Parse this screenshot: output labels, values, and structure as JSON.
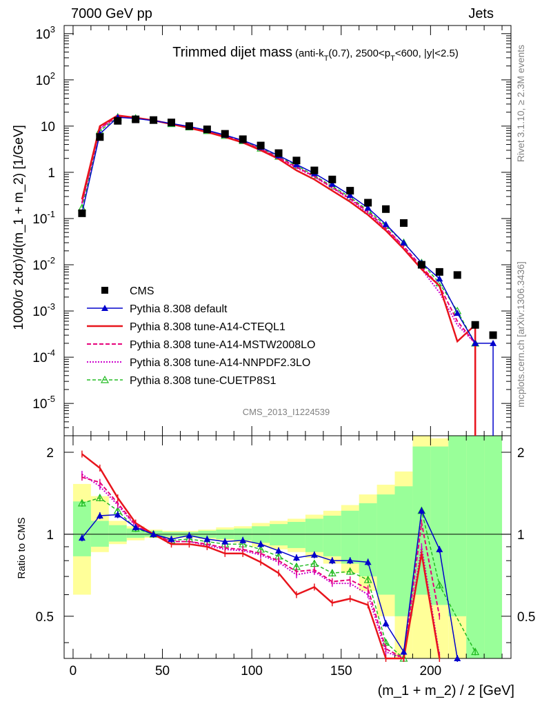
{
  "header": {
    "left": "7000 GeV pp",
    "right": "Jets",
    "side_version": "Rivet 3.1.10, ≥ 2.3M events",
    "side_site": "mcplots.cern.ch [arXiv:1306.3436]",
    "analysis_id": "CMS_2013_I1224539"
  },
  "colors": {
    "cms": "#000000",
    "default": "#0000cc",
    "a14_cteql1": "#e8141c",
    "a14_mstw": "#e6007a",
    "a14_nnpdf": "#cc00cc",
    "cuetp8s1": "#22bb22",
    "band_inner": "#99ff99",
    "band_outer": "#ffff99"
  },
  "chart_data": [
    {
      "type": "line",
      "title": "Trimmed dijet mass",
      "title_sub": "(anti-k",
      "title_sub_T": "T",
      "title_sub_mid": "(0.7), 2500<p",
      "title_sub_end": "<600, |y|<2.5)",
      "ylabel": "1000/σ 2dσ)/d(m_1 + m_2) [1/GeV]",
      "yscale": "log",
      "ylim": [
        2e-06,
        1500
      ],
      "xlim": [
        -5,
        245
      ],
      "y_ticks": [
        {
          "label": "10",
          "exp": "3",
          "v": 1000
        },
        {
          "label": "10",
          "exp": "2",
          "v": 100
        },
        {
          "label": "10",
          "exp": "",
          "v": 10
        },
        {
          "label": "1",
          "exp": "",
          "v": 1
        },
        {
          "label": "10",
          "exp": "-1",
          "v": 0.1
        },
        {
          "label": "10",
          "exp": "-2",
          "v": 0.01
        },
        {
          "label": "10",
          "exp": "-3",
          "v": 0.001
        },
        {
          "label": "10",
          "exp": "-4",
          "v": 0.0001
        },
        {
          "label": "10",
          "exp": "-5",
          "v": 1e-05
        }
      ],
      "legend": "left-bottom",
      "series": [
        {
          "key": "cms",
          "name": "CMS",
          "style": "marker-square",
          "x": [
            5,
            15,
            25,
            35,
            45,
            55,
            65,
            75,
            85,
            95,
            105,
            115,
            125,
            135,
            145,
            155,
            165,
            175,
            185,
            195,
            205,
            215,
            225,
            235
          ],
          "y": [
            0.13,
            5.8,
            13,
            14,
            13.5,
            12,
            10,
            8.5,
            6.8,
            5.2,
            3.8,
            2.6,
            1.8,
            1.1,
            0.7,
            0.4,
            0.22,
            0.16,
            0.08,
            0.01,
            0.007,
            0.006,
            0.0005,
            0.0003
          ]
        },
        {
          "key": "default",
          "name": "Pythia 8.308 default",
          "style": "solid-triangle",
          "x": [
            5,
            15,
            25,
            35,
            45,
            55,
            65,
            75,
            85,
            95,
            105,
            115,
            125,
            135,
            145,
            155,
            165,
            175,
            185,
            195,
            205,
            215,
            225,
            235
          ],
          "y": [
            0.13,
            6.8,
            15.5,
            14.6,
            13.1,
            11.4,
            9.8,
            8.1,
            6.4,
            4.9,
            3.5,
            2.3,
            1.48,
            0.95,
            0.56,
            0.32,
            0.17,
            0.075,
            0.03,
            0.011,
            0.005,
            0.0009,
            0.0002,
            0.0002
          ]
        },
        {
          "key": "a14_cteql1",
          "name": "Pythia 8.308 tune-A14-CTEQL1",
          "style": "solid-thick",
          "x": [
            5,
            15,
            25,
            35,
            45,
            55,
            65,
            75,
            85,
            95,
            105,
            115,
            125,
            135,
            145,
            155,
            165,
            175,
            185,
            195,
            205,
            215,
            225
          ],
          "y": [
            0.26,
            10,
            17,
            15.2,
            13.3,
            11,
            9.1,
            7.4,
            5.8,
            4.4,
            3.0,
            1.95,
            1.1,
            0.7,
            0.4,
            0.23,
            0.12,
            0.055,
            0.022,
            0.008,
            0.0035,
            0.00022,
            0.0005
          ]
        },
        {
          "key": "a14_mstw",
          "name": "Pythia 8.308 tune-A14-MSTW2008LO",
          "style": "dashed",
          "x": [
            5,
            15,
            25,
            35,
            45,
            55,
            65,
            75,
            85,
            95,
            105,
            115,
            125,
            135,
            145,
            155,
            165,
            175,
            185,
            195,
            205,
            215,
            225
          ],
          "y": [
            0.22,
            9,
            16.2,
            15,
            13.3,
            11.2,
            9.3,
            7.7,
            6.0,
            4.6,
            3.2,
            2.1,
            1.3,
            0.82,
            0.47,
            0.27,
            0.14,
            0.062,
            0.025,
            0.009,
            0.0035,
            0.0006,
            0.0002
          ]
        },
        {
          "key": "a14_nnpdf",
          "name": "Pythia 8.308 tune-A14-NNPDF2.3LO",
          "style": "dotted",
          "x": [
            5,
            15,
            25,
            35,
            45,
            55,
            65,
            75,
            85,
            95,
            105,
            115,
            125,
            135,
            145,
            155,
            165,
            175,
            185,
            195,
            205,
            215,
            225
          ],
          "y": [
            0.21,
            8.8,
            16,
            14.9,
            13.2,
            11.1,
            9.2,
            7.6,
            5.9,
            4.5,
            3.1,
            2.05,
            1.25,
            0.8,
            0.46,
            0.26,
            0.13,
            0.06,
            0.024,
            0.008,
            0.0025,
            0.0005,
            0.0002
          ]
        },
        {
          "key": "cuetp8s1",
          "name": "Pythia 8.308 tune-CUETP8S1",
          "style": "dashed-open-triangle",
          "x": [
            5,
            15,
            25,
            35,
            45,
            55,
            65,
            75,
            85,
            95,
            105,
            115,
            125,
            135,
            145,
            155,
            165,
            175,
            185,
            195,
            205,
            215,
            225
          ],
          "y": [
            0.17,
            7.9,
            15.6,
            14.7,
            13.2,
            11.2,
            9.5,
            7.9,
            6.2,
            4.8,
            3.3,
            2.2,
            1.4,
            0.85,
            0.5,
            0.29,
            0.15,
            0.07,
            0.03,
            0.011,
            0.004,
            0.001,
            0.0002
          ]
        }
      ]
    },
    {
      "type": "line",
      "ylabel": "Ratio to CMS",
      "xlabel": "(m_1 + m_2) / 2 [GeV]",
      "ylim": [
        0.35,
        2.3
      ],
      "xlim": [
        -5,
        245
      ],
      "x_ticks": [
        0,
        50,
        100,
        150,
        200
      ],
      "y_ticks": [
        0.5,
        1,
        2
      ],
      "reference": 1,
      "band_edges": [
        0,
        10,
        20,
        30,
        40,
        50,
        60,
        70,
        80,
        90,
        100,
        110,
        120,
        130,
        140,
        150,
        160,
        170,
        180,
        190,
        200,
        210,
        220,
        230,
        240
      ],
      "band_inner": [
        [
          0.83,
          1.32
        ],
        [
          0.9,
          1.12
        ],
        [
          0.94,
          1.08
        ],
        [
          0.97,
          1.05
        ],
        [
          0.98,
          1.03
        ],
        [
          0.98,
          1.02
        ],
        [
          0.98,
          1.02
        ],
        [
          0.97,
          1.03
        ],
        [
          0.96,
          1.04
        ],
        [
          0.95,
          1.05
        ],
        [
          0.93,
          1.07
        ],
        [
          0.91,
          1.09
        ],
        [
          0.89,
          1.11
        ],
        [
          0.86,
          1.14
        ],
        [
          0.83,
          1.17
        ],
        [
          0.78,
          1.22
        ],
        [
          0.7,
          1.3
        ],
        [
          0.6,
          1.4
        ],
        [
          0.5,
          1.5
        ],
        [
          0.6,
          2.1
        ],
        [
          0.55,
          2.1
        ],
        [
          0.5,
          2.3
        ],
        [
          0.35,
          2.3
        ],
        [
          0.35,
          2.3
        ]
      ],
      "band_outer": [
        [
          0.6,
          1.53
        ],
        [
          0.86,
          1.38
        ],
        [
          0.92,
          1.12
        ],
        [
          0.95,
          1.07
        ],
        [
          0.97,
          1.04
        ],
        [
          0.97,
          1.03
        ],
        [
          0.97,
          1.03
        ],
        [
          0.96,
          1.04
        ],
        [
          0.95,
          1.06
        ],
        [
          0.93,
          1.07
        ],
        [
          0.9,
          1.1
        ],
        [
          0.88,
          1.12
        ],
        [
          0.86,
          1.14
        ],
        [
          0.82,
          1.18
        ],
        [
          0.78,
          1.22
        ],
        [
          0.72,
          1.28
        ],
        [
          0.62,
          1.4
        ],
        [
          0.5,
          1.52
        ],
        [
          0.35,
          1.7
        ],
        [
          0.35,
          2.3
        ],
        [
          0.35,
          2.25
        ],
        [
          0.35,
          2.05
        ],
        [
          0.35,
          2.3
        ],
        [
          0.35,
          2.3
        ]
      ],
      "series": [
        {
          "key": "default",
          "x": [
            5,
            15,
            25,
            35,
            45,
            55,
            65,
            75,
            85,
            95,
            105,
            115,
            125,
            135,
            145,
            155,
            165,
            175,
            185,
            195,
            205,
            215
          ],
          "y": [
            0.97,
            1.17,
            1.18,
            1.06,
            1.0,
            0.96,
            0.99,
            0.96,
            0.94,
            0.95,
            0.92,
            0.87,
            0.82,
            0.84,
            0.8,
            0.8,
            0.79,
            0.47,
            0.37,
            1.22,
            0.88,
            0.15
          ]
        },
        {
          "key": "a14_cteql1",
          "x": [
            5,
            15,
            25,
            35,
            45,
            55,
            65,
            75,
            85,
            95,
            105,
            115,
            125,
            135,
            145,
            155,
            165,
            175,
            185,
            195,
            205
          ],
          "y": [
            1.97,
            1.75,
            1.36,
            1.1,
            1.0,
            0.92,
            0.92,
            0.9,
            0.85,
            0.85,
            0.79,
            0.72,
            0.6,
            0.64,
            0.56,
            0.58,
            0.55,
            0.3,
            0.28,
            0.85,
            0.3
          ]
        },
        {
          "key": "a14_mstw",
          "x": [
            5,
            15,
            25,
            35,
            45,
            55,
            65,
            75,
            85,
            95,
            105,
            115,
            125,
            135,
            145,
            155,
            165,
            175,
            185,
            195,
            205
          ],
          "y": [
            1.62,
            1.55,
            1.3,
            1.08,
            1.0,
            0.94,
            0.94,
            0.92,
            0.89,
            0.88,
            0.85,
            0.8,
            0.73,
            0.74,
            0.67,
            0.68,
            0.63,
            0.38,
            0.31,
            1.1,
            0.5
          ]
        },
        {
          "key": "a14_nnpdf",
          "x": [
            5,
            15,
            25,
            35,
            45,
            55,
            65,
            75,
            85,
            95,
            105,
            115,
            125,
            135,
            145,
            155,
            165,
            175,
            185,
            195,
            205
          ],
          "y": [
            1.66,
            1.5,
            1.28,
            1.07,
            1.0,
            0.94,
            0.94,
            0.91,
            0.88,
            0.87,
            0.84,
            0.79,
            0.71,
            0.73,
            0.66,
            0.66,
            0.6,
            0.37,
            0.3,
            0.9,
            0.36
          ]
        },
        {
          "key": "cuetp8s1",
          "x": [
            5,
            15,
            25,
            35,
            45,
            55,
            65,
            75,
            85,
            95,
            105,
            115,
            125,
            135,
            145,
            155,
            165,
            175,
            185,
            195,
            205,
            225
          ],
          "y": [
            1.3,
            1.36,
            1.22,
            1.05,
            1.0,
            0.95,
            0.96,
            0.94,
            0.92,
            0.92,
            0.88,
            0.83,
            0.76,
            0.78,
            0.72,
            0.73,
            0.68,
            0.4,
            0.34,
            1.22,
            0.65,
            0.37
          ]
        }
      ]
    }
  ]
}
